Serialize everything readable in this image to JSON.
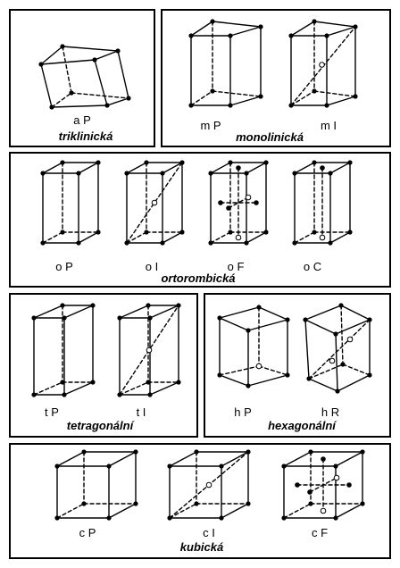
{
  "systems": {
    "triclinic": "triklinická",
    "monoclinic": "monolinická",
    "orthorhombic": "ortorombická",
    "tetragonal": "tetragonální",
    "hexagonal": "hexagonální",
    "cubic": "kubická"
  },
  "lattices": {
    "aP": "a P",
    "mP": "m P",
    "mI": "m I",
    "oP": "o P",
    "oI": "o I",
    "oF": "o F",
    "oC": "o C",
    "tP": "t P",
    "tI": "t I",
    "hP": "h P",
    "hR": "h R",
    "cP": "c P",
    "cI": "c I",
    "cF": "c F"
  }
}
